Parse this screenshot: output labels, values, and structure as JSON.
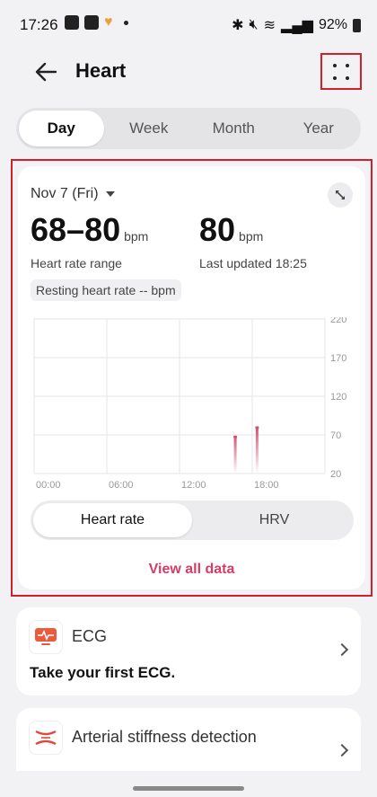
{
  "status": {
    "time": "17:26",
    "battery": "92%"
  },
  "header": {
    "title": "Heart"
  },
  "tabs": [
    {
      "label": "Day",
      "active": true
    },
    {
      "label": "Week",
      "active": false
    },
    {
      "label": "Month",
      "active": false
    },
    {
      "label": "Year",
      "active": false
    }
  ],
  "summary": {
    "date": "Nov 7 (Fri)",
    "range_value": "68–80",
    "range_unit": "bpm",
    "range_label": "Heart rate range",
    "latest_value": "80",
    "latest_unit": "bpm",
    "latest_label": "Last updated 18:25",
    "resting": "Resting heart rate -- bpm"
  },
  "chart_data": {
    "type": "bar",
    "x_ticks": [
      "00:00",
      "06:00",
      "12:00",
      "18:00"
    ],
    "y_ticks": [
      220,
      170,
      120,
      70,
      20
    ],
    "ylim": [
      20,
      220
    ],
    "xlim_hours": [
      0,
      24
    ],
    "bars": [
      {
        "hour": 16.6,
        "value": 68
      },
      {
        "hour": 18.4,
        "value": 80
      }
    ],
    "color": "#d0546f"
  },
  "segment": {
    "options": [
      "Heart rate",
      "HRV"
    ],
    "active": 0
  },
  "view_all": "View all data",
  "ecg": {
    "title": "ECG",
    "subtitle": "Take your first ECG."
  },
  "arterial": {
    "title": "Arterial stiffness detection"
  }
}
